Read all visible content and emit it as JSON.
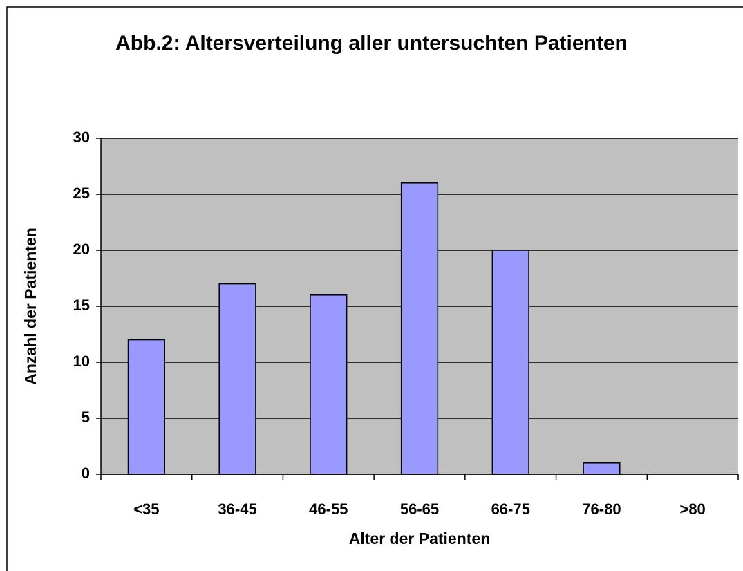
{
  "chart_data": {
    "type": "bar",
    "title": "Abb.2: Altersverteilung aller untersuchten Patienten",
    "x_label": "Alter der Patienten",
    "y_label": "Anzahl der Patienten",
    "categories": [
      "<35",
      "36-45",
      "46-55",
      "56-65",
      "66-75",
      "76-80",
      ">80"
    ],
    "values": [
      12,
      17,
      16,
      26,
      20,
      1,
      0
    ],
    "color": "#9999ff",
    "ylim": [
      0,
      30
    ],
    "yticks": [
      0,
      5,
      10,
      15,
      20,
      25,
      30
    ],
    "grid": true
  }
}
